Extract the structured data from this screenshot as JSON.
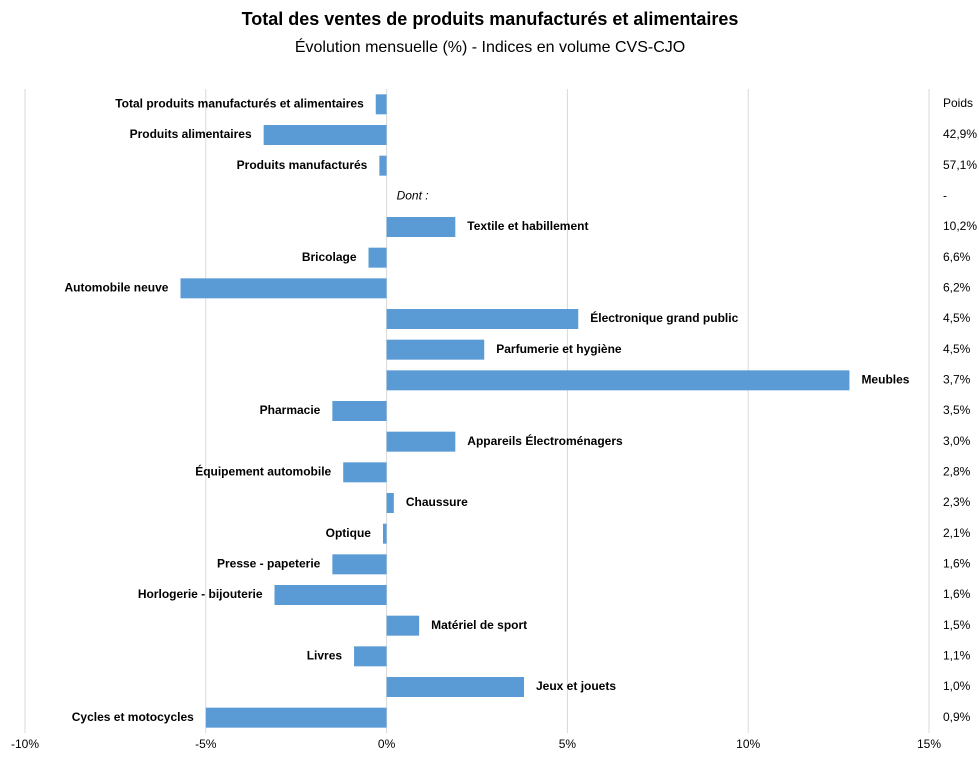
{
  "chart_data": {
    "type": "barh",
    "title": "Total des ventes de produits manufacturés et alimentaires",
    "subtitle": "Évolution mensuelle (%) - Indices en volume CVS-CJO",
    "categories": [
      "Total produits manufacturés et alimentaires",
      "Produits alimentaires",
      "Produits manufacturés",
      "Dont :",
      "Textile et habillement",
      "Bricolage",
      "Automobile neuve",
      "Électronique grand public",
      "Parfumerie et hygiène",
      "Meubles",
      "Pharmacie",
      "Appareils Électroménagers",
      "Équipement automobile",
      "Chaussure",
      "Optique",
      "Presse - papeterie",
      "Horlogerie - bijouterie",
      "Matériel de sport",
      "Livres",
      "Jeux et jouets",
      "Cycles et motocycles"
    ],
    "values": [
      -0.3,
      -3.4,
      -0.2,
      null,
      1.9,
      -0.5,
      -5.7,
      5.3,
      2.7,
      12.8,
      -1.5,
      1.9,
      -1.2,
      0.2,
      -0.1,
      -1.5,
      -3.1,
      0.9,
      -0.9,
      3.8,
      -5.0
    ],
    "weights_title": "Poids",
    "weights": [
      "",
      "42,9%",
      "57,1%",
      "-",
      "10,2%",
      "6,6%",
      "6,2%",
      "4,5%",
      "4,5%",
      "3,7%",
      "3,5%",
      "3,0%",
      "2,8%",
      "2,3%",
      "2,1%",
      "1,6%",
      "1,6%",
      "1,5%",
      "1,1%",
      "1,0%",
      "0,9%"
    ],
    "color": "#5b9bd5",
    "xlim": [
      -10,
      15
    ],
    "xticks": [
      {
        "value": -10,
        "label": "-10%"
      },
      {
        "value": -5,
        "label": "-5%"
      },
      {
        "value": 0,
        "label": "0%"
      },
      {
        "value": 5,
        "label": "5%"
      },
      {
        "value": 10,
        "label": "10%"
      },
      {
        "value": 15,
        "label": "15%"
      }
    ],
    "grid": true
  }
}
